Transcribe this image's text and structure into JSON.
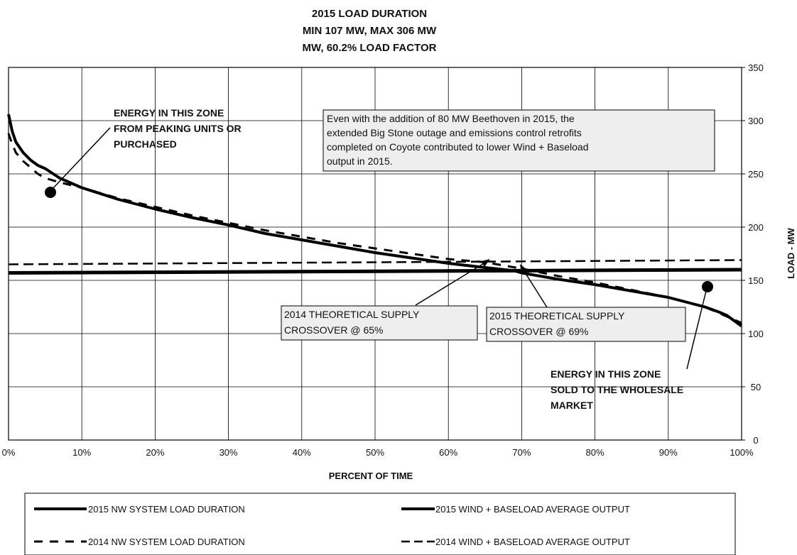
{
  "chart_data": {
    "type": "line",
    "title_lines": [
      "2015 LOAD DURATION",
      "MIN 107 MW, MAX 306 MW",
      "MW, 60.2% LOAD FACTOR"
    ],
    "xlabel": "PERCENT OF TIME",
    "ylabel": "LOAD - MW",
    "xlim": [
      0,
      100
    ],
    "ylim": [
      0,
      350
    ],
    "x_ticks": [
      "0%",
      "10%",
      "20%",
      "30%",
      "40%",
      "50%",
      "60%",
      "70%",
      "80%",
      "90%",
      "100%"
    ],
    "y_ticks": [
      "0",
      "50",
      "100",
      "150",
      "200",
      "250",
      "300",
      "350"
    ],
    "y_axis_side": "right",
    "grid": true,
    "series": [
      {
        "name": "2015 NW SYSTEM LOAD DURATION",
        "style": "solid",
        "x": [
          0,
          0.5,
          1,
          2,
          3,
          4,
          5,
          7,
          10,
          15,
          20,
          25,
          30,
          35,
          40,
          45,
          50,
          55,
          60,
          65,
          69,
          70,
          75,
          80,
          85,
          90,
          95,
          97,
          98,
          99,
          100
        ],
        "y": [
          306,
          290,
          280,
          270,
          263,
          258,
          255,
          246,
          237,
          226,
          217,
          209,
          202,
          194,
          188,
          182,
          176,
          171,
          166,
          162,
          159,
          157,
          151,
          146,
          140,
          134,
          125,
          120,
          117,
          112,
          107
        ]
      },
      {
        "name": "2014 NW SYSTEM LOAD DURATION",
        "style": "dashed",
        "x": [
          0,
          0.5,
          1,
          2,
          3,
          4,
          5,
          7,
          10,
          15,
          20,
          25,
          30,
          35,
          40,
          45,
          50,
          55,
          60,
          65,
          70,
          75,
          80,
          85,
          90,
          95,
          100
        ],
        "y": [
          288,
          278,
          270,
          262,
          256,
          250,
          246,
          242,
          237,
          227,
          219,
          211,
          204,
          197,
          191,
          185,
          180,
          175,
          170,
          167,
          161,
          154,
          148,
          141,
          134,
          125,
          110
        ]
      },
      {
        "name": "2015 WIND + BASELOAD AVERAGE OUTPUT",
        "style": "solid",
        "x": [
          0,
          100
        ],
        "y": [
          157,
          160
        ]
      },
      {
        "name": "2014 WIND + BASELOAD AVERAGE OUTPUT",
        "style": "dashed",
        "x": [
          0,
          100
        ],
        "y": [
          165,
          169
        ]
      }
    ],
    "annotations": {
      "peak_zone": [
        "ENERGY IN THIS ZONE",
        "FROM PEAKING UNITS OR",
        "PURCHASED"
      ],
      "wholesale_zone": [
        "ENERGY IN THIS ZONE",
        "SOLD TO THE WHOLESALE",
        "MARKET"
      ],
      "crossover_2014": [
        "2014 THEORETICAL SUPPLY",
        "CROSSOVER @ 65%"
      ],
      "crossover_2015": [
        "2015 THEORETICAL SUPPLY",
        "CROSSOVER @ 69%"
      ],
      "note": [
        "Even with the addition of 80 MW Beethoven in 2015, the",
        "extended Big Stone outage and emissions control retrofits",
        "completed on  Coyote contributed to lower Wind + Baseload",
        "output in 2015."
      ]
    },
    "legend_position": "bottom",
    "colors": {
      "line": "#000000",
      "grid": "#000000",
      "box_fill": "#eeeeee"
    }
  }
}
